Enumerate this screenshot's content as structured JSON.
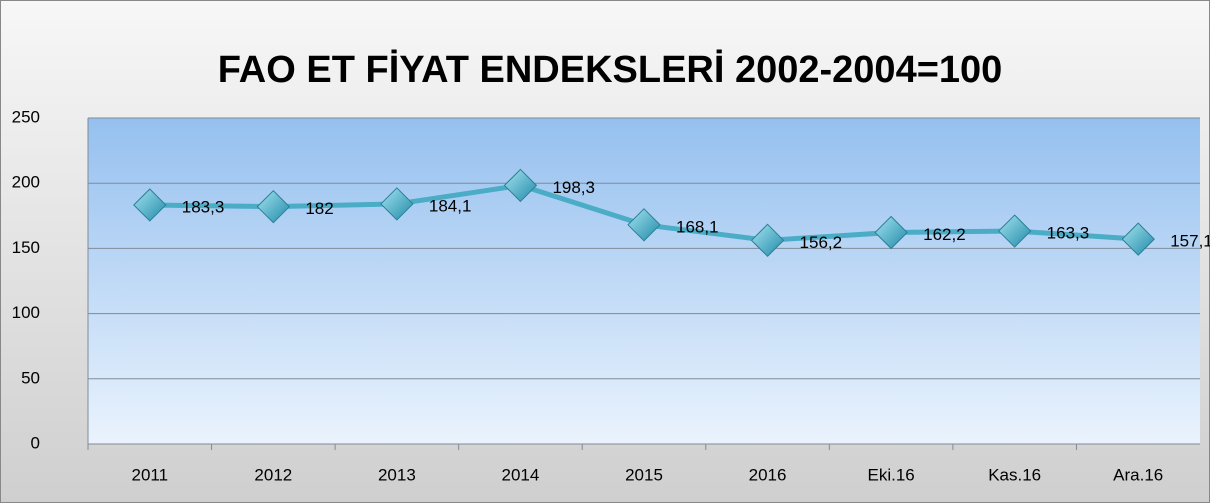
{
  "chart_data": {
    "type": "line",
    "title": "FAO ET FİYAT ENDEKSLERİ 2002-2004=100",
    "categories": [
      "2011",
      "2012",
      "2013",
      "2014",
      "2015",
      "2016",
      "Eki.16",
      "Kas.16",
      "Ara.16"
    ],
    "values": [
      183.3,
      182,
      184.1,
      198.3,
      168.1,
      156.2,
      162.2,
      163.3,
      157.1
    ],
    "value_labels": [
      "183,3",
      "182",
      "184,1",
      "198,3",
      "168,1",
      "156,2",
      "162,2",
      "163,3",
      "157,1"
    ],
    "color": "#4bacc6",
    "ylim": [
      0,
      250
    ],
    "yticks": [
      0,
      50,
      100,
      150,
      200,
      250
    ],
    "grid": true
  }
}
